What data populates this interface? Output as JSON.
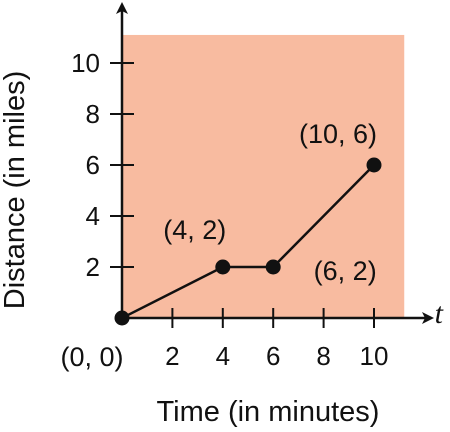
{
  "chart_data": {
    "type": "line",
    "xlabel": "Time (in minutes)",
    "ylabel": "Distance (in miles)",
    "x_axis_variable": "t",
    "xlim": [
      0,
      11.2
    ],
    "ylim": [
      0,
      11.1
    ],
    "x_ticks": [
      2,
      4,
      6,
      8,
      10
    ],
    "y_ticks": [
      2,
      4,
      6,
      8,
      10
    ],
    "grid": false,
    "plot_background": "#f8bba0",
    "line_color": "#111111",
    "points": [
      {
        "x": 0,
        "y": 0,
        "label": "(0, 0)"
      },
      {
        "x": 4,
        "y": 2,
        "label": "(4, 2)"
      },
      {
        "x": 6,
        "y": 2,
        "label": "(6, 2)"
      },
      {
        "x": 10,
        "y": 6,
        "label": "(10, 6)"
      }
    ]
  }
}
